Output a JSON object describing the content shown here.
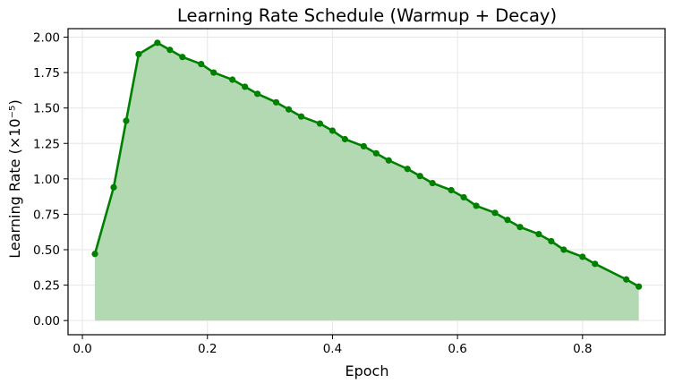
{
  "chart_data": {
    "type": "line",
    "title": "Learning Rate Schedule (Warmup + Decay)",
    "xlabel": "Epoch",
    "ylabel": "Learning Rate (×10⁻⁵)",
    "xlim": [
      -0.023,
      0.932
    ],
    "ylim": [
      -0.1,
      2.06
    ],
    "x_ticks": [
      0.0,
      0.2,
      0.4,
      0.6,
      0.8
    ],
    "x_tick_labels": [
      "0.0",
      "0.2",
      "0.4",
      "0.6",
      "0.8"
    ],
    "y_ticks": [
      0.0,
      0.25,
      0.5,
      0.75,
      1.0,
      1.25,
      1.5,
      1.75,
      2.0
    ],
    "y_tick_labels": [
      "0.00",
      "0.25",
      "0.50",
      "0.75",
      "1.00",
      "1.25",
      "1.50",
      "1.75",
      "2.00"
    ],
    "grid": true,
    "fill_under": true,
    "series": [
      {
        "name": "Learning Rate",
        "color": "#008000",
        "fill_color": "#b3d9b3",
        "marker": "circle",
        "x": [
          0.02,
          0.05,
          0.07,
          0.09,
          0.12,
          0.14,
          0.16,
          0.19,
          0.21,
          0.24,
          0.26,
          0.28,
          0.31,
          0.33,
          0.35,
          0.38,
          0.4,
          0.42,
          0.45,
          0.47,
          0.49,
          0.52,
          0.54,
          0.56,
          0.59,
          0.61,
          0.63,
          0.66,
          0.68,
          0.7,
          0.73,
          0.75,
          0.77,
          0.8,
          0.82,
          0.87,
          0.89
        ],
        "y": [
          0.47,
          0.94,
          1.41,
          1.88,
          1.96,
          1.91,
          1.86,
          1.81,
          1.75,
          1.7,
          1.65,
          1.6,
          1.54,
          1.49,
          1.44,
          1.39,
          1.34,
          1.28,
          1.23,
          1.18,
          1.13,
          1.07,
          1.02,
          0.97,
          0.92,
          0.87,
          0.81,
          0.76,
          0.71,
          0.66,
          0.61,
          0.56,
          0.5,
          0.45,
          0.4,
          0.29,
          0.24
        ]
      }
    ]
  }
}
